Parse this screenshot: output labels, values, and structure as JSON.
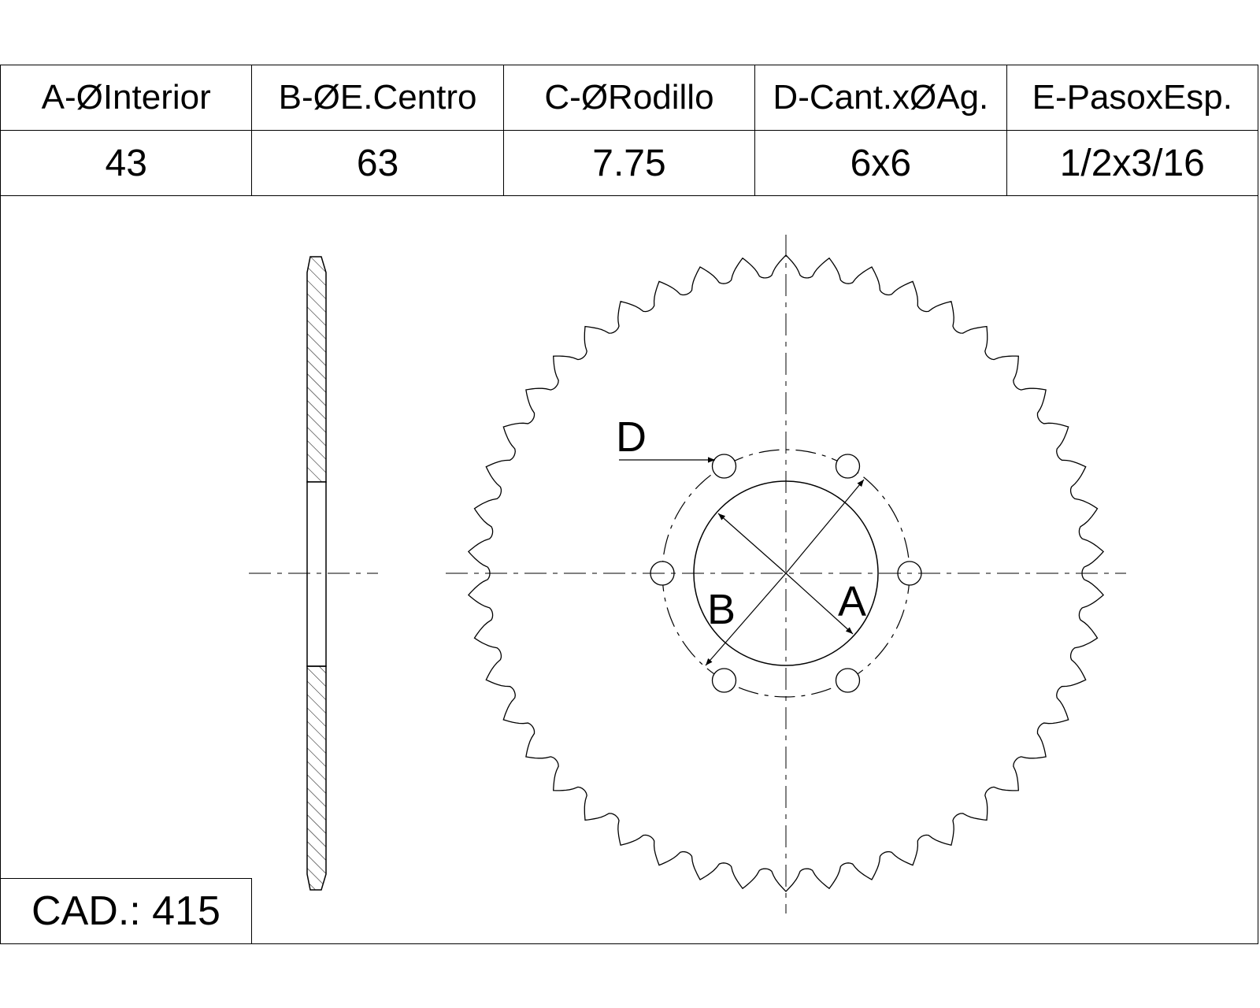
{
  "table": {
    "headers": [
      "A-ØInterior",
      "B-ØE.Centro",
      "C-ØRodillo",
      "D-Cant.xØAg.",
      "E-PasoxEsp."
    ],
    "values": [
      "43",
      "63",
      "7.75",
      "6x6",
      "1/2x3/16"
    ]
  },
  "drawing": {
    "tooth_count": 46,
    "bolt_hole_count": 6,
    "callouts": {
      "a": "A",
      "b": "B",
      "d": "D"
    }
  },
  "cad": {
    "label": "CAD.: 415"
  }
}
